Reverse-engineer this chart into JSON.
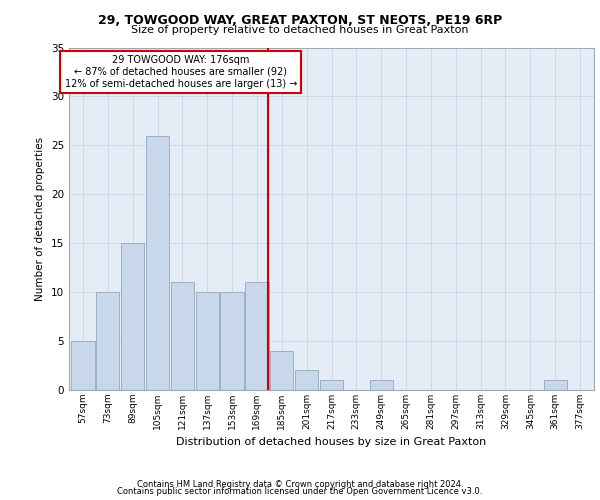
{
  "title1": "29, TOWGOOD WAY, GREAT PAXTON, ST NEOTS, PE19 6RP",
  "title2": "Size of property relative to detached houses in Great Paxton",
  "xlabel": "Distribution of detached houses by size in Great Paxton",
  "ylabel": "Number of detached properties",
  "bins": [
    57,
    73,
    89,
    105,
    121,
    137,
    153,
    169,
    185,
    201,
    217,
    233,
    249,
    265,
    281,
    297,
    313,
    329,
    345,
    361,
    377
  ],
  "values": [
    5,
    10,
    15,
    26,
    11,
    10,
    10,
    11,
    4,
    2,
    1,
    0,
    1,
    0,
    0,
    0,
    0,
    0,
    0,
    1,
    0
  ],
  "bar_color": "#c8d8ea",
  "bar_edge_color": "#9ab0c8",
  "property_size": 176,
  "vline_color": "#cc0000",
  "annotation_text": "29 TOWGOOD WAY: 176sqm\n← 87% of detached houses are smaller (92)\n12% of semi-detached houses are larger (13) →",
  "annotation_box_facecolor": "#ffffff",
  "annotation_box_edgecolor": "#cc0000",
  "ylim": [
    0,
    35
  ],
  "yticks": [
    0,
    5,
    10,
    15,
    20,
    25,
    30,
    35
  ],
  "grid_color": "#ced8e8",
  "bg_color": "#e4ecf6",
  "footer1": "Contains HM Land Registry data © Crown copyright and database right 2024.",
  "footer2": "Contains public sector information licensed under the Open Government Licence v3.0."
}
